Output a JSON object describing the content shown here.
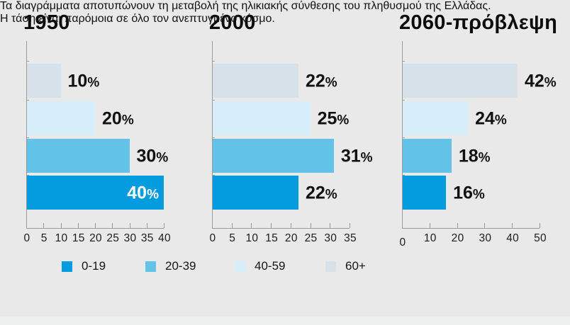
{
  "palette": {
    "0-19": "#049cde",
    "20-39": "#62c2e8",
    "40-59": "#d6eef9",
    "60+": "#d6e1ea"
  },
  "axis_color": "#9a9a9a",
  "background": "#e8e9e8",
  "chart_data": [
    {
      "type": "bar",
      "title": "1950",
      "orientation": "horizontal",
      "categories": [
        "60+",
        "40-59",
        "20-39",
        "0-19"
      ],
      "values": [
        10,
        20,
        30,
        40
      ],
      "labels": [
        "10%",
        "20%",
        "30%",
        "40%"
      ],
      "xlim": [
        0,
        40
      ],
      "ticks": [
        0,
        5,
        10,
        15,
        20,
        25,
        30,
        35,
        40
      ],
      "grid": false
    },
    {
      "type": "bar",
      "title": "2000",
      "orientation": "horizontal",
      "categories": [
        "60+",
        "40-59",
        "20-39",
        "0-19"
      ],
      "values": [
        22,
        25,
        31,
        22
      ],
      "labels": [
        "22%",
        "25%",
        "31%",
        "22%"
      ],
      "xlim": [
        0,
        35
      ],
      "ticks": [
        0,
        5,
        10,
        15,
        20,
        25,
        30,
        35
      ],
      "grid": false
    },
    {
      "type": "bar",
      "title": "2060-πρόβλεψη",
      "orientation": "horizontal",
      "categories": [
        "60+",
        "40-59",
        "20-39",
        "0-19"
      ],
      "values": [
        42,
        24,
        18,
        16
      ],
      "labels": [
        "42%",
        "24%",
        "18%",
        "16%"
      ],
      "xlim": [
        0,
        50
      ],
      "ticks": [
        0,
        10,
        20,
        30,
        40,
        50
      ],
      "grid": false
    }
  ],
  "legend": {
    "items": [
      {
        "label": "0-19",
        "color": "#049cde"
      },
      {
        "label": "20-39",
        "color": "#62c2e8"
      },
      {
        "label": "40-59",
        "color": "#d6eef9"
      },
      {
        "label": "60+",
        "color": "#d6e1ea"
      }
    ]
  },
  "caption": {
    "line1": "Τα διαγράμματα  αποτυπώνουν τη μεταβολή της ηλικιακής σύνθεσης του πληθυσμού της Ελλάδας.",
    "line2": "Η τάση είναι παρόμοια σε όλο τον ανεπτυγμένο κόσμο."
  }
}
